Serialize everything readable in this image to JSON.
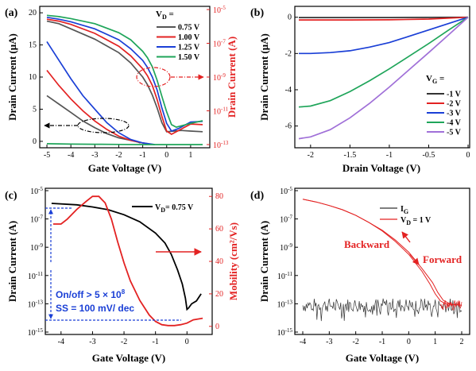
{
  "colors": {
    "black": "#333333",
    "red": "#e32222",
    "blue": "#1a3fd6",
    "green": "#1fa55a",
    "purple": "#a070d8",
    "grey": "#555555"
  },
  "panels": {
    "a": {
      "label": "(a)",
      "xlabel": "Gate Voltage (V)",
      "ylabel": "Drain Current (μA)",
      "ylabel_right": "Drain Current (A)",
      "legend_title": "V",
      "legend_title_sub": "D",
      "legend_title_suffix": " ="
    },
    "b": {
      "label": "(b)",
      "xlabel": "Drain Voltage (V)",
      "ylabel": "Drain Current (μA)",
      "legend_title": "V",
      "legend_title_sub": "G",
      "legend_title_suffix": " ="
    },
    "c": {
      "label": "(c)",
      "xlabel": "Gate Voltage (V)",
      "ylabel": "Drain Current (A)",
      "ylabel_right": "Mobility (cm²/Vs)",
      "legend_text": "V",
      "legend_sub": "D",
      "legend_suffix": "= 0.75 V",
      "ann_onoff": "On/off > 5 × 10",
      "ann_onoff_sup": "8",
      "ann_ss": "SS = 100 mV/ dec"
    },
    "d": {
      "label": "(d)",
      "xlabel": "Gate Voltage (V)",
      "ylabel": "Drain Current (A)",
      "legend_ig": "I",
      "legend_ig_sub": "G",
      "legend_vd": "V",
      "legend_vd_sub": "D",
      "legend_vd_suffix": " = 1 V",
      "ann_backward": "Backward",
      "ann_forward": "Forward"
    }
  },
  "chart_data": [
    {
      "panel": "a",
      "type": "line",
      "x_range": [
        -5.3,
        1.8
      ],
      "xticks": [
        -5,
        -4,
        -3,
        -2,
        -1,
        0,
        1
      ],
      "y_left_range": [
        -1,
        21
      ],
      "yticks_left": [
        0,
        5,
        10,
        15,
        20
      ],
      "y_right_log_range": [
        -13,
        -5
      ],
      "yticks_right": [
        {
          "exp": -13
        },
        {
          "exp": -11
        },
        {
          "exp": -9
        },
        {
          "exp": -7
        },
        {
          "exp": -5
        }
      ],
      "series": [
        {
          "name": "0.75 V",
          "color": "#555555",
          "linear_x": [
            -5,
            -4.5,
            -4,
            -3,
            -2,
            -1.5,
            -1,
            -0.8,
            -0.6,
            -0.4,
            -0.2,
            0,
            0.3,
            0.6,
            1,
            1.5
          ],
          "linear_y": [
            18.7,
            18.3,
            17.5,
            15.9,
            13.8,
            12.2,
            10.0,
            8.8,
            7.2,
            5.2,
            2.9,
            1.5,
            1.6,
            1.7,
            1.6,
            1.5
          ],
          "log_x": [
            -5,
            -4.5,
            -4,
            -3.5,
            -3,
            -2.5,
            -2,
            -1.5,
            -1.2,
            -1.1
          ],
          "log_y": [
            -10.1,
            -10.6,
            -11.1,
            -11.6,
            -12.0,
            -12.35,
            -12.6,
            -12.75,
            -12.85,
            -12.9
          ]
        },
        {
          "name": "1.00 V",
          "color": "#e32222",
          "linear_x": [
            -5,
            -4.5,
            -4,
            -3,
            -2,
            -1.5,
            -1,
            -0.8,
            -0.6,
            -0.4,
            -0.2,
            0,
            0.2,
            0.5,
            1,
            1.5
          ],
          "linear_y": [
            19.0,
            18.7,
            18.2,
            16.8,
            14.8,
            13.3,
            11.3,
            10.2,
            8.7,
            6.5,
            3.9,
            1.6,
            1.1,
            1.7,
            2.7,
            2.6
          ],
          "log_x": [
            -5,
            -4.5,
            -4,
            -3.5,
            -3,
            -2.5,
            -2,
            -1.5,
            -1,
            -0.8
          ],
          "log_y": [
            -8.6,
            -9.5,
            -10.3,
            -11.0,
            -11.6,
            -12.1,
            -12.5,
            -12.75,
            -12.9,
            -12.95
          ]
        },
        {
          "name": "1.25 V",
          "color": "#1a3fd6",
          "linear_x": [
            -5,
            -4.5,
            -4,
            -3,
            -2,
            -1.5,
            -1,
            -0.8,
            -0.6,
            -0.4,
            -0.2,
            0,
            0.2,
            0.5,
            1,
            1.5
          ],
          "linear_y": [
            19.3,
            19.0,
            18.6,
            17.5,
            15.8,
            14.4,
            12.6,
            11.5,
            10.0,
            8.0,
            5.2,
            2.8,
            1.6,
            2.0,
            3.0,
            3.1
          ],
          "log_x": [
            -5,
            -4.5,
            -4,
            -3.5,
            -3,
            -2.5,
            -2,
            -1.5,
            -1,
            -0.5
          ],
          "log_y": [
            -6.9,
            -8.0,
            -9.1,
            -10.1,
            -10.9,
            -11.7,
            -12.3,
            -12.7,
            -12.9,
            -13.0
          ]
        },
        {
          "name": "1.50 V",
          "color": "#1fa55a",
          "linear_x": [
            -5,
            -4.5,
            -4,
            -3,
            -2,
            -1.5,
            -1,
            -0.8,
            -0.6,
            -0.4,
            -0.2,
            0,
            0.2,
            0.4,
            0.7,
            1,
            1.5
          ],
          "linear_y": [
            19.6,
            19.4,
            19.1,
            18.3,
            16.9,
            15.8,
            14.0,
            13.0,
            11.6,
            9.5,
            7.0,
            4.6,
            2.6,
            2.2,
            2.5,
            2.8,
            3.2
          ],
          "log_x": [
            -5,
            -4,
            -3,
            -2,
            -1,
            0,
            1,
            1.5
          ],
          "log_y": [
            -12.95,
            -12.97,
            -12.98,
            -12.99,
            -13.0,
            -13.0,
            -13.0,
            -13.0
          ]
        }
      ]
    },
    {
      "panel": "b",
      "type": "line",
      "x_range": [
        -2.2,
        0.02
      ],
      "xticks": [
        -2.0,
        -1.5,
        -1.0,
        -0.5,
        0.0
      ],
      "y_range": [
        -7.2,
        0.6
      ],
      "yticks": [
        0,
        -2,
        -4,
        -6
      ],
      "series": [
        {
          "name": "-1 V",
          "color": "#333333",
          "x": [
            -2.15,
            -1.5,
            -1.0,
            -0.5,
            0
          ],
          "y": [
            -0.02,
            -0.02,
            -0.02,
            -0.01,
            0
          ]
        },
        {
          "name": "-2 V",
          "color": "#e32222",
          "x": [
            -2.15,
            -1.5,
            -1.0,
            -0.5,
            0
          ],
          "y": [
            -0.15,
            -0.15,
            -0.14,
            -0.1,
            0
          ]
        },
        {
          "name": "-3 V",
          "color": "#1a3fd6",
          "x": [
            -2.15,
            -2.0,
            -1.75,
            -1.5,
            -1.25,
            -1.0,
            -0.75,
            -0.5,
            -0.25,
            0
          ],
          "y": [
            -2.0,
            -2.0,
            -1.95,
            -1.85,
            -1.65,
            -1.4,
            -1.05,
            -0.7,
            -0.35,
            0
          ]
        },
        {
          "name": "-4 V",
          "color": "#1fa55a",
          "x": [
            -2.15,
            -2.0,
            -1.75,
            -1.5,
            -1.25,
            -1.0,
            -0.75,
            -0.5,
            -0.25,
            0
          ],
          "y": [
            -4.95,
            -4.9,
            -4.6,
            -4.1,
            -3.5,
            -2.85,
            -2.15,
            -1.45,
            -0.72,
            0
          ]
        },
        {
          "name": "-5 V",
          "color": "#a070d8",
          "x": [
            -2.15,
            -2.0,
            -1.75,
            -1.5,
            -1.25,
            -1.0,
            -0.75,
            -0.5,
            -0.25,
            0
          ],
          "y": [
            -6.7,
            -6.6,
            -6.2,
            -5.55,
            -4.75,
            -3.85,
            -2.9,
            -1.95,
            -0.98,
            0
          ]
        }
      ]
    },
    {
      "panel": "c",
      "type": "line",
      "x_range": [
        -4.5,
        0.8
      ],
      "xticks": [
        -4,
        -3,
        -2,
        -1,
        0
      ],
      "y_left_log_range": [
        -15,
        -5
      ],
      "yticks_left": [
        {
          "exp": -15
        },
        {
          "exp": -13
        },
        {
          "exp": -11
        },
        {
          "exp": -9
        },
        {
          "exp": -7
        },
        {
          "exp": -5
        }
      ],
      "y_right_range": [
        -5,
        85
      ],
      "yticks_right": [
        0,
        20,
        40,
        60,
        80
      ],
      "series": [
        {
          "name": "Drain current",
          "color": "#000000",
          "axis": "left",
          "x": [
            -4.3,
            -3.5,
            -3,
            -2.5,
            -2,
            -1.5,
            -1,
            -0.7,
            -0.5,
            -0.3,
            -0.15,
            -0.05,
            0,
            0.05,
            0.15,
            0.3,
            0.45
          ],
          "y": [
            -5.9,
            -6.0,
            -6.15,
            -6.35,
            -6.7,
            -7.2,
            -8.0,
            -8.7,
            -9.5,
            -10.6,
            -11.6,
            -12.6,
            -13.4,
            -13.3,
            -13.0,
            -12.8,
            -12.3
          ]
        },
        {
          "name": "Mobility",
          "color": "#e32222",
          "axis": "right",
          "x": [
            -4.25,
            -4.0,
            -3.8,
            -3.5,
            -3.2,
            -3.0,
            -2.8,
            -2.6,
            -2.4,
            -2.2,
            -2.0,
            -1.8,
            -1.5,
            -1.2,
            -1.0,
            -0.8,
            -0.6,
            -0.4,
            -0.2,
            0,
            0.2,
            0.5
          ],
          "y": [
            63,
            63,
            66,
            72,
            77,
            80,
            80,
            76,
            66,
            52,
            39,
            28,
            16,
            7,
            3,
            1,
            0.5,
            0.5,
            1,
            2,
            4,
            5
          ]
        }
      ]
    },
    {
      "panel": "d",
      "type": "line",
      "x_range": [
        -4.3,
        2.3
      ],
      "xticks": [
        -4,
        -3,
        -2,
        -1,
        0,
        1,
        2
      ],
      "y_log_range": [
        -15,
        -5
      ],
      "yticks": [
        {
          "exp": -15
        },
        {
          "exp": -13
        },
        {
          "exp": -11
        },
        {
          "exp": -9
        },
        {
          "exp": -7
        },
        {
          "exp": -5
        }
      ],
      "series": [
        {
          "name": "Forward",
          "color": "#e32222",
          "x": [
            -4,
            -3.5,
            -3,
            -2.5,
            -2,
            -1.5,
            -1,
            -0.5,
            0,
            0.5,
            0.8,
            1.0,
            1.2,
            1.4,
            1.6,
            2.0
          ],
          "y": [
            -5.6,
            -5.8,
            -6.05,
            -6.35,
            -6.75,
            -7.25,
            -7.85,
            -8.6,
            -9.5,
            -10.7,
            -11.6,
            -12.3,
            -12.8,
            -13.0,
            -13.05,
            -13.1
          ]
        },
        {
          "name": "Backward",
          "color": "#e32222",
          "x": [
            -4,
            -3.5,
            -3,
            -2.5,
            -2,
            -1.5,
            -1,
            -0.5,
            0,
            0.5,
            0.9,
            1.1,
            1.3,
            1.5,
            1.7,
            2.0
          ],
          "y": [
            -5.6,
            -5.8,
            -6.05,
            -6.35,
            -6.75,
            -7.25,
            -7.8,
            -8.5,
            -9.35,
            -10.5,
            -11.5,
            -12.2,
            -12.75,
            -12.95,
            -13.05,
            -13.1
          ]
        },
        {
          "name": "I_G",
          "color": "#333333",
          "mean_exp": -13.1,
          "spread": 0.5,
          "x_start": -4,
          "x_end": 2
        }
      ]
    }
  ]
}
